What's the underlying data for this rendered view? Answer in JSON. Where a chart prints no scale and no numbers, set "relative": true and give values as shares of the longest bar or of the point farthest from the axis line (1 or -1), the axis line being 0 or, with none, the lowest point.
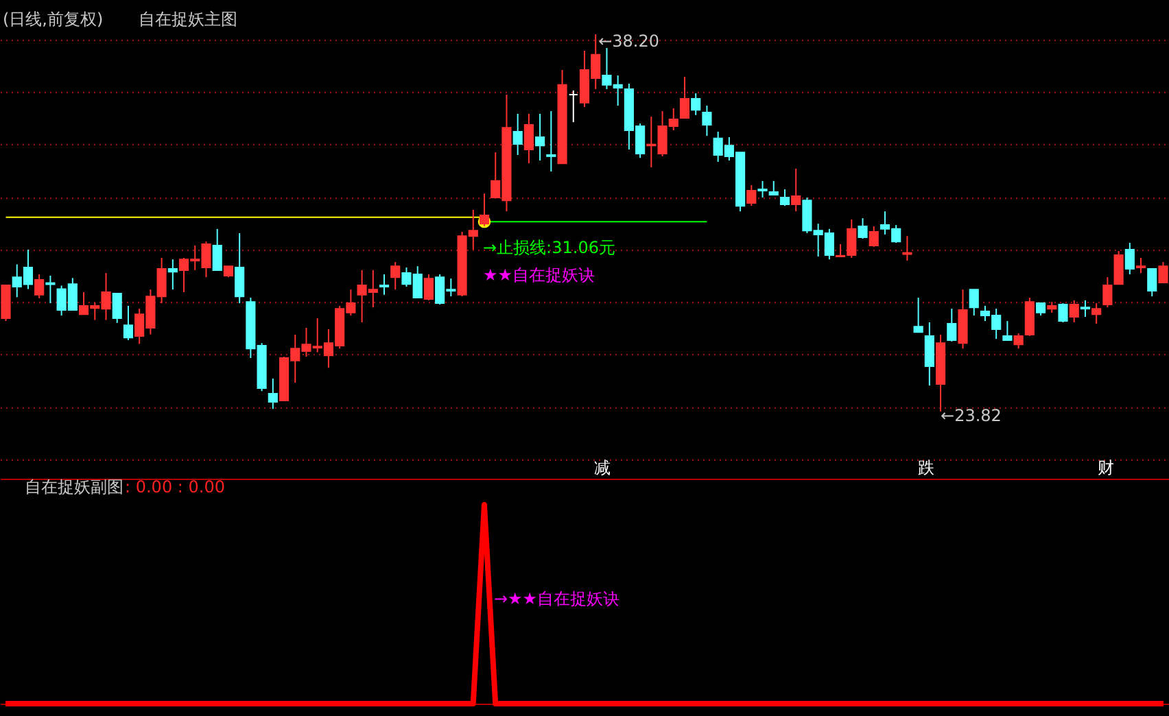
{
  "chart_data": [
    {
      "type": "candlestick",
      "title": "(日线,前复权)",
      "subtitle": "自在捉妖主图",
      "categories": [
        null,
        null,
        null,
        null,
        null,
        null,
        null,
        null,
        null,
        null,
        null,
        null,
        null,
        null,
        null,
        null,
        null,
        null,
        null,
        null,
        null,
        null,
        null,
        null,
        null,
        null,
        null,
        null,
        null,
        null,
        null,
        null,
        null,
        null,
        null,
        null,
        null,
        null,
        null,
        null,
        null,
        null,
        null,
        null,
        null,
        null,
        null,
        null,
        null,
        null,
        null,
        null,
        null,
        null,
        null,
        null,
        null,
        null,
        null,
        null,
        null,
        null,
        null,
        null,
        null,
        null,
        null,
        null,
        null,
        null,
        null,
        null,
        null,
        null,
        null,
        null,
        null,
        null,
        null,
        null,
        null,
        null,
        null,
        null,
        null,
        null,
        null,
        null,
        null,
        null,
        null,
        null,
        null,
        null,
        null,
        null,
        null,
        null,
        null,
        null,
        null,
        null,
        null,
        null,
        null
      ],
      "ohlc": [
        [
          27.38,
          28.63,
          27.27,
          28.63
        ],
        [
          28.94,
          29.43,
          28.18,
          28.58
        ],
        [
          29.31,
          29.99,
          28.49,
          28.67
        ],
        [
          28.27,
          29.05,
          28.14,
          28.84
        ],
        [
          28.72,
          29.0,
          27.95,
          28.67
        ],
        [
          28.49,
          28.62,
          27.48,
          27.69
        ],
        [
          28.68,
          28.91,
          27.69,
          27.69
        ],
        [
          27.53,
          28.37,
          27.53,
          27.85
        ],
        [
          27.76,
          27.97,
          27.31,
          27.85
        ],
        [
          27.74,
          29.1,
          27.31,
          28.37
        ],
        [
          28.32,
          28.32,
          27.2,
          27.38
        ],
        [
          27.11,
          27.85,
          26.54,
          26.64
        ],
        [
          26.7,
          27.74,
          26.4,
          27.53
        ],
        [
          27.01,
          28.47,
          26.76,
          28.21
        ],
        [
          28.21,
          29.68,
          27.95,
          29.26
        ],
        [
          29.26,
          29.62,
          28.47,
          29.15
        ],
        [
          29.21,
          29.68,
          28.37,
          29.62
        ],
        [
          29.57,
          30.15,
          29.21,
          29.62
        ],
        [
          29.31,
          30.3,
          28.94,
          30.2
        ],
        [
          30.15,
          30.78,
          29.21,
          29.21
        ],
        [
          29.0,
          29.36,
          28.94,
          29.36
        ],
        [
          29.31,
          30.62,
          27.95,
          28.21
        ],
        [
          28.0,
          28.16,
          25.86,
          26.22
        ],
        [
          26.33,
          26.43,
          24.6,
          24.71
        ],
        [
          24.5,
          25.08,
          23.92,
          24.19
        ],
        [
          24.24,
          25.91,
          24.24,
          25.86
        ],
        [
          25.76,
          26.75,
          24.92,
          26.22
        ],
        [
          26.12,
          27.01,
          25.91,
          26.38
        ],
        [
          26.25,
          27.38,
          26.08,
          26.3
        ],
        [
          25.96,
          26.96,
          25.49,
          26.43
        ],
        [
          26.33,
          27.85,
          26.22,
          27.74
        ],
        [
          27.59,
          28.47,
          27.48,
          27.95
        ],
        [
          28.27,
          29.21,
          27.22,
          28.63
        ],
        [
          28.37,
          29.21,
          27.79,
          28.47
        ],
        [
          28.63,
          29.05,
          28.27,
          28.58
        ],
        [
          28.94,
          29.52,
          28.47,
          29.36
        ],
        [
          29.1,
          29.31,
          28.58,
          28.68
        ],
        [
          29.05,
          29.36,
          28.16,
          28.16
        ],
        [
          28.11,
          29.05,
          28.06,
          28.89
        ],
        [
          28.94,
          29.05,
          27.9,
          27.95
        ],
        [
          28.47,
          28.89,
          28.21,
          28.42
        ],
        [
          28.27,
          30.67,
          28.21,
          30.51
        ],
        [
          30.51,
          31.51,
          29.99,
          30.72
        ],
        [
          30.98,
          32.13,
          30.88,
          31.3
        ],
        [
          31.98,
          33.7,
          31.98,
          32.61
        ],
        [
          31.87,
          35.9,
          31.45,
          34.64
        ],
        [
          34.49,
          35.17,
          33.6,
          34.02
        ],
        [
          33.81,
          35.17,
          33.28,
          34.75
        ],
        [
          34.28,
          35.17,
          33.39,
          33.96
        ],
        [
          33.6,
          35.27,
          32.97,
          33.55
        ],
        [
          33.28,
          36.84,
          33.28,
          36.27
        ],
        [
          35.9,
          36.06,
          34.85,
          35.9
        ],
        [
          35.59,
          37.57,
          35.43,
          36.84
        ],
        [
          36.53,
          38.2,
          36.11,
          37.42
        ],
        [
          36.63,
          37.68,
          36.11,
          36.27
        ],
        [
          36.27,
          36.63,
          35.48,
          36.16
        ],
        [
          36.11,
          36.32,
          33.81,
          34.54
        ],
        [
          34.7,
          34.8,
          33.49,
          33.65
        ],
        [
          33.96,
          35.06,
          33.13,
          34.0
        ],
        [
          33.65,
          35.27,
          33.55,
          34.7
        ],
        [
          34.7,
          35.38,
          34.54,
          34.96
        ],
        [
          35.01,
          36.58,
          35.01,
          35.74
        ],
        [
          35.74,
          35.95,
          35.12,
          35.32
        ],
        [
          35.22,
          35.48,
          34.33,
          34.75
        ],
        [
          34.23,
          34.49,
          33.34,
          33.6
        ],
        [
          33.96,
          34.28,
          33.39,
          33.55
        ],
        [
          33.7,
          33.7,
          31.45,
          31.66
        ],
        [
          31.77,
          32.45,
          31.66,
          32.24
        ],
        [
          32.29,
          32.61,
          31.98,
          32.24
        ],
        [
          32.19,
          32.61,
          32.08,
          32.08
        ],
        [
          31.98,
          32.29,
          31.66,
          31.72
        ],
        [
          31.72,
          33.08,
          31.45,
          32.03
        ],
        [
          31.87,
          31.98,
          30.62,
          30.72
        ],
        [
          30.72,
          30.98,
          29.73,
          30.57
        ],
        [
          30.62,
          30.78,
          29.62,
          29.78
        ],
        [
          29.73,
          30.2,
          29.73,
          29.76
        ],
        [
          29.78,
          31.14,
          29.68,
          30.78
        ],
        [
          30.88,
          31.19,
          30.41,
          30.46
        ],
        [
          30.15,
          30.88,
          30.1,
          30.67
        ],
        [
          30.93,
          31.45,
          30.57,
          30.78
        ],
        [
          30.78,
          30.93,
          30.25,
          30.3
        ],
        [
          29.82,
          30.51,
          29.57,
          29.87
        ],
        [
          27.06,
          28.16,
          26.85,
          26.85
        ],
        [
          26.7,
          27.22,
          24.81,
          25.55
        ],
        [
          24.87,
          26.75,
          23.82,
          26.43
        ],
        [
          27.17,
          27.74,
          26.49,
          26.54
        ],
        [
          26.43,
          28.47,
          26.22,
          27.69
        ],
        [
          28.47,
          28.47,
          27.48,
          27.79
        ],
        [
          27.64,
          27.85,
          27.27,
          27.48
        ],
        [
          27.48,
          27.74,
          26.59,
          26.96
        ],
        [
          26.7,
          27.27,
          26.54,
          26.54
        ],
        [
          26.38,
          26.8,
          26.22,
          26.7
        ],
        [
          26.75,
          28.16,
          26.7,
          28.0
        ],
        [
          27.95,
          27.95,
          27.48,
          27.59
        ],
        [
          27.74,
          28.0,
          27.59,
          27.85
        ],
        [
          27.9,
          27.95,
          27.22,
          27.27
        ],
        [
          27.43,
          28.06,
          27.22,
          27.9
        ],
        [
          27.79,
          28.06,
          27.43,
          27.74
        ],
        [
          27.53,
          27.95,
          27.17,
          27.74
        ],
        [
          27.9,
          28.94,
          27.79,
          28.63
        ],
        [
          28.68,
          29.94,
          28.68,
          29.78
        ],
        [
          29.99,
          30.25,
          29.05,
          29.26
        ],
        [
          29.31,
          29.68,
          29.1,
          29.36
        ],
        [
          29.26,
          29.26,
          28.21,
          28.42
        ],
        [
          28.74,
          29.52,
          28.74,
          29.36
        ]
      ],
      "colors": [
        "#ff3232",
        "#54ffff",
        "#54ffff",
        "#ff3232",
        "#54ffff",
        "#54ffff",
        "#54ffff",
        "#ff3232",
        "#ff3232",
        "#ff3232",
        "#54ffff",
        "#54ffff",
        "#ff3232",
        "#ff3232",
        "#ff3232",
        "#54ffff",
        "#ff3232",
        "#ff3232",
        "#ff3232",
        "#54ffff",
        "#ff3232",
        "#54ffff",
        "#54ffff",
        "#54ffff",
        "#54ffff",
        "#ff3232",
        "#ff3232",
        "#ff3232",
        "#ff3232",
        "#ff3232",
        "#ff3232",
        "#ff3232",
        "#ff3232",
        "#ff3232",
        "#54ffff",
        "#ff3232",
        "#54ffff",
        "#54ffff",
        "#ff3232",
        "#54ffff",
        "#54ffff",
        "#ff3232",
        "#ff3232",
        "#ff3232",
        "#ff3232",
        "#ff3232",
        "#54ffff",
        "#ff3232",
        "#54ffff",
        "#54ffff",
        "#ff3232",
        "#ffffff",
        "#ff3232",
        "#ff3232",
        "#54ffff",
        "#54ffff",
        "#54ffff",
        "#54ffff",
        "#ff3232",
        "#ff3232",
        "#ff3232",
        "#ff3232",
        "#54ffff",
        "#54ffff",
        "#54ffff",
        "#54ffff",
        "#54ffff",
        "#ff3232",
        "#54ffff",
        "#54ffff",
        "#54ffff",
        "#ff3232",
        "#54ffff",
        "#54ffff",
        "#54ffff",
        "#ff3232",
        "#ff3232",
        "#54ffff",
        "#ff3232",
        "#54ffff",
        "#54ffff",
        "#ff3232",
        "#54ffff",
        "#54ffff",
        "#ff3232",
        "#54ffff",
        "#ff3232",
        "#54ffff",
        "#54ffff",
        "#54ffff",
        "#54ffff",
        "#ff3232",
        "#ff3232",
        "#54ffff",
        "#ff3232",
        "#54ffff",
        "#ff3232",
        "#54ffff",
        "#ff3232",
        "#ff3232",
        "#ff3232",
        "#54ffff",
        "#ff3232",
        "#54ffff",
        "#ff3232"
      ],
      "yticks": [
        {
          "value": 22,
          "label": null
        },
        {
          "value": 24,
          "label": null
        },
        {
          "value": 26,
          "label": null
        },
        {
          "value": 28,
          "label": null
        },
        {
          "value": 30,
          "label": null
        },
        {
          "value": 32,
          "label": null
        },
        {
          "value": 34,
          "label": null
        },
        {
          "value": 36,
          "label": null
        },
        {
          "value": 38,
          "label": null
        }
      ],
      "grid": "y",
      "series": [
        {
          "type": "line",
          "color": "#ffff00",
          "values": [
            31.23,
            31.23,
            31.23,
            31.23,
            31.23,
            31.23,
            31.23,
            31.23,
            31.23,
            31.23,
            31.23,
            31.23,
            31.23,
            31.23,
            31.23,
            31.23,
            31.23,
            31.23,
            31.23,
            31.23,
            31.23,
            31.23,
            31.23,
            31.23,
            31.23,
            31.23,
            31.23,
            31.23,
            31.23,
            31.23,
            31.23,
            31.23,
            31.23,
            31.23,
            31.23,
            31.23,
            31.23,
            31.23,
            31.23,
            31.23,
            31.23,
            31.23,
            31.23,
            31.23,
            null,
            null,
            null,
            null,
            null,
            null,
            null,
            null,
            null,
            null,
            null,
            null,
            null,
            null,
            null,
            null,
            null,
            null,
            null,
            null,
            null,
            null,
            null,
            null,
            null,
            null,
            null,
            null,
            null,
            null,
            null,
            null,
            null,
            null,
            null,
            null,
            null,
            null,
            null,
            null,
            null,
            null,
            null,
            null,
            null,
            null,
            null,
            null,
            null,
            null,
            null,
            null,
            null,
            null,
            null,
            null,
            null,
            null,
            null,
            null,
            null
          ]
        },
        {
          "type": "line",
          "color": "#00ff00",
          "values": [
            null,
            null,
            null,
            null,
            null,
            null,
            null,
            null,
            null,
            null,
            null,
            null,
            null,
            null,
            null,
            null,
            null,
            null,
            null,
            null,
            null,
            null,
            null,
            null,
            null,
            null,
            null,
            null,
            null,
            null,
            null,
            null,
            null,
            null,
            null,
            null,
            null,
            null,
            null,
            null,
            null,
            null,
            null,
            31.06,
            31.06,
            31.06,
            31.06,
            31.06,
            31.06,
            31.06,
            31.06,
            31.06,
            31.06,
            31.06,
            31.06,
            31.06,
            31.06,
            31.06,
            31.06,
            31.06,
            31.06,
            31.06,
            31.06,
            31.06,
            null,
            null,
            null,
            null,
            null,
            null,
            null,
            null,
            null,
            null,
            null,
            null,
            null,
            null,
            null,
            null,
            null,
            null,
            null,
            null,
            null,
            null,
            null,
            null,
            null,
            null,
            null,
            null,
            null,
            null,
            null,
            null,
            null,
            null,
            null,
            null,
            null,
            null,
            null,
            null,
            null
          ]
        },
        {
          "type": "scatter",
          "color": "#ffff00",
          "marker": "circle",
          "values": [
            null,
            null,
            null,
            null,
            null,
            null,
            null,
            null,
            null,
            null,
            null,
            null,
            null,
            null,
            null,
            null,
            null,
            null,
            null,
            null,
            null,
            null,
            null,
            null,
            null,
            null,
            null,
            null,
            null,
            null,
            null,
            null,
            null,
            null,
            null,
            null,
            null,
            null,
            null,
            null,
            null,
            null,
            null,
            31.06,
            null,
            null,
            null,
            null,
            null,
            null,
            null,
            null,
            null,
            null,
            null,
            null,
            null,
            null,
            null,
            null,
            null,
            null,
            null,
            null,
            null,
            null,
            null,
            null,
            null,
            null,
            null,
            null,
            null,
            null,
            null,
            null,
            null,
            null,
            null,
            null,
            null,
            null,
            null,
            null,
            null,
            null,
            null,
            null,
            null,
            null,
            null,
            null,
            null,
            null,
            null,
            null,
            null,
            null,
            null,
            null,
            null,
            null,
            null,
            null,
            null
          ]
        }
      ],
      "annotations": [
        "←38.20",
        "←23.82",
        {
          "text": "→止损线:31.06元",
          "y": 31.06
        },
        "★★自在捉妖诀",
        "减",
        "跌",
        "财"
      ]
    },
    {
      "type": "line",
      "title": "自在捉妖副图",
      "relative": true,
      "categories": [
        null,
        null,
        null,
        null,
        null,
        null,
        null,
        null,
        null,
        null,
        null,
        null,
        null,
        null,
        null,
        null,
        null,
        null,
        null,
        null,
        null,
        null,
        null,
        null,
        null,
        null,
        null,
        null,
        null,
        null,
        null,
        null,
        null,
        null,
        null,
        null,
        null,
        null,
        null,
        null,
        null,
        null,
        null,
        null,
        null,
        null,
        null,
        null,
        null,
        null,
        null,
        null,
        null,
        null,
        null,
        null,
        null,
        null,
        null,
        null,
        null,
        null,
        null,
        null,
        null,
        null,
        null,
        null,
        null,
        null,
        null,
        null,
        null,
        null,
        null,
        null,
        null,
        null,
        null,
        null,
        null,
        null,
        null,
        null,
        null,
        null,
        null,
        null,
        null,
        null,
        null,
        null,
        null,
        null,
        null,
        null,
        null,
        null,
        null,
        null,
        null,
        null,
        null,
        null,
        null
      ],
      "series": [
        {
          "color": "#ff0000",
          "values": [
            0,
            0,
            0,
            0,
            0,
            0,
            0,
            0,
            0,
            0,
            0,
            0,
            0,
            0,
            0,
            0,
            0,
            0,
            0,
            0,
            0,
            0,
            0,
            0,
            0,
            0,
            0,
            0,
            0,
            0,
            0,
            0,
            0,
            0,
            0,
            0,
            0,
            0,
            0,
            0,
            0,
            0,
            0,
            1,
            0,
            0,
            0,
            0,
            0,
            0,
            0,
            0,
            0,
            0,
            0,
            0,
            0,
            0,
            0,
            0,
            0,
            0,
            0,
            0,
            0,
            0,
            0,
            0,
            0,
            0,
            0,
            0,
            0,
            0,
            0,
            0,
            0,
            0,
            0,
            0,
            0,
            0,
            0,
            0,
            0,
            0,
            0,
            0,
            0,
            0,
            0,
            0,
            0,
            0,
            0,
            0,
            0,
            0,
            0,
            0,
            0,
            0,
            0,
            0,
            0
          ]
        }
      ],
      "annotations": [
        ": 0.00 : 0.00",
        "→★★自在捉妖诀"
      ]
    }
  ]
}
